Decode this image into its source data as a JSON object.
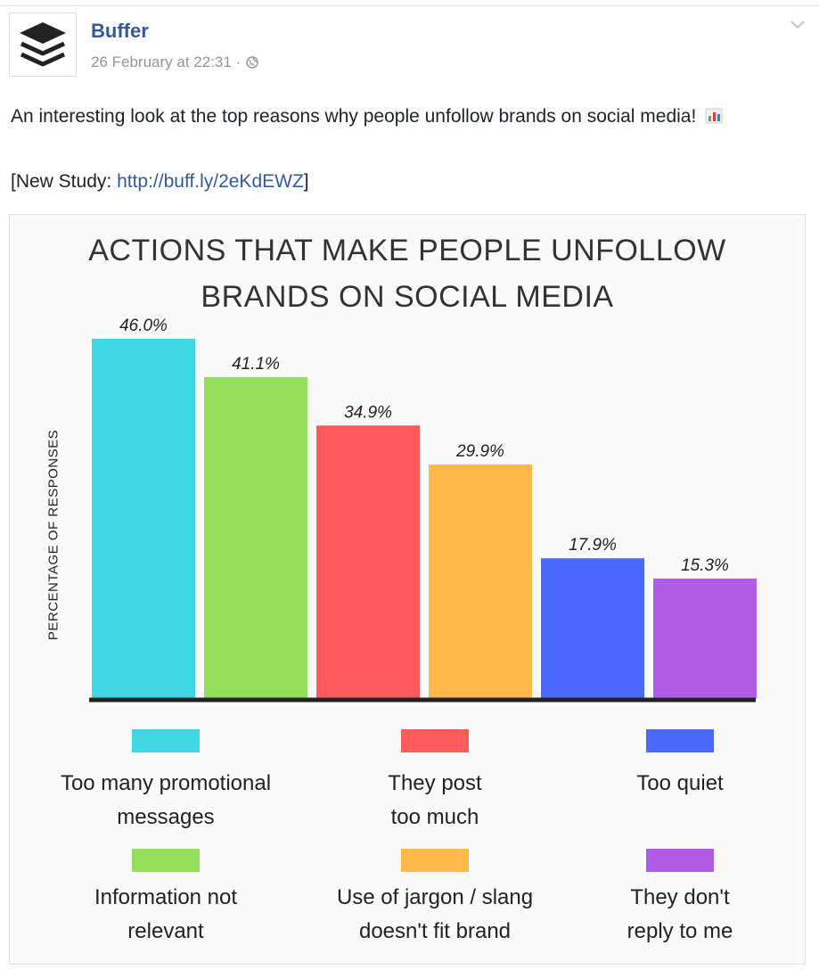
{
  "post": {
    "page_name": "Buffer",
    "timestamp": "26 February at 22:31 ·",
    "text": "An interesting look at the top reasons why people unfollow brands on social media!",
    "study_prefix": "[New Study: ",
    "study_link": "http://buff.ly/2eKdEWZ",
    "study_suffix": "]",
    "icons": {
      "avatar": "buffer-logo-icon",
      "privacy": "globe-icon",
      "menu": "chevron-down-icon",
      "emoji": "bar-chart-emoji-icon"
    }
  },
  "chart_data": {
    "type": "bar",
    "title_line1": "ACTIONS THAT MAKE PEOPLE UNFOLLOW",
    "title_line2": "BRANDS ON SOCIAL MEDIA",
    "ylabel": "PERCENTAGE OF RESPONSES",
    "ylim": [
      0,
      50
    ],
    "grid": false,
    "legend_placement": "bottom",
    "categories": [
      "Too many promotional messages",
      "Information not relevant",
      "They post too much",
      "Use of jargon / slang doesn't fit brand",
      "Too quiet",
      "They don't reply to me"
    ],
    "values": [
      46.0,
      41.1,
      34.9,
      29.9,
      17.9,
      15.3
    ],
    "data_labels": [
      "46.0%",
      "41.1%",
      "34.9%",
      "29.9%",
      "17.9%",
      "15.3%"
    ],
    "colors": [
      "#3fd5e3",
      "#93df5c",
      "#ff5b5b",
      "#ffb84a",
      "#4a6aff",
      "#b05ce6"
    ],
    "legend": [
      {
        "line1": "Too many promotional",
        "line2": "messages"
      },
      {
        "line1": "Information not",
        "line2": "relevant"
      },
      {
        "line1": "They post",
        "line2": "too much"
      },
      {
        "line1": "Use of jargon / slang",
        "line2": "doesn't fit brand"
      },
      {
        "line1": "Too quiet",
        "line2": ""
      },
      {
        "line1": "They don't",
        "line2": "reply to me"
      }
    ]
  }
}
